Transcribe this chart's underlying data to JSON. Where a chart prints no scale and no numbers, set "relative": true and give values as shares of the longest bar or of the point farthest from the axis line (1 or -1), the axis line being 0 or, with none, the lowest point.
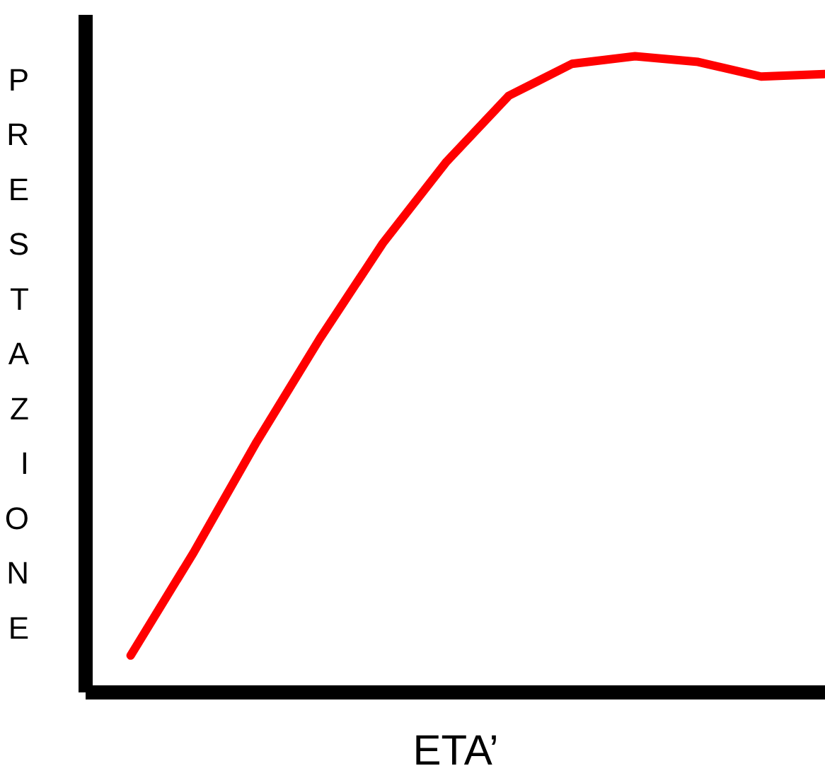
{
  "chart_data": {
    "type": "line",
    "relative": true,
    "xlabel": "ETA’",
    "ylabel": "PRESTAZIONE",
    "categories": [
      null,
      null,
      null,
      null,
      null,
      null,
      null,
      null,
      null,
      null,
      null,
      null
    ],
    "series": [
      {
        "color": "#ff0000",
        "values": [
          0.058,
          0.22,
          0.394,
          0.556,
          0.706,
          0.833,
          0.938,
          0.988,
          1.0,
          0.991,
          0.968,
          0.972
        ]
      }
    ],
    "marker": "none",
    "line_style": "solid"
  }
}
